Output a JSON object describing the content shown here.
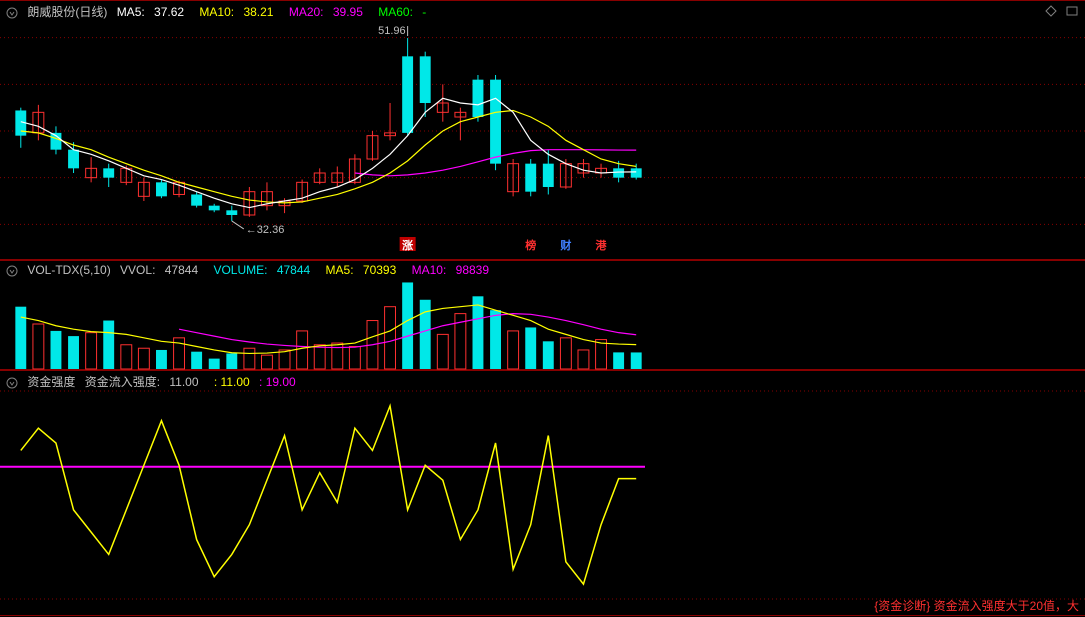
{
  "colors": {
    "bg": "#000000",
    "gridline": "#880000",
    "text_gray": "#c0c0c0",
    "up_candle": "#ff3030",
    "down_candle": "#00e8e8",
    "ma5": "#ffffff",
    "ma10": "#ffff00",
    "ma20": "#ff00ff",
    "ma60": "#00ff00",
    "vol_ma5": "#ffff00",
    "vol_ma10": "#ff00ff",
    "strength_line": "#ffff00",
    "strength_ref": "#ff00ff"
  },
  "panel1": {
    "title": "朗威股份(日线)",
    "ma5_label": "MA5:",
    "ma5_value": "37.62",
    "ma10_label": "MA10:",
    "ma10_value": "38.21",
    "ma20_label": "MA20:",
    "ma20_value": "39.95",
    "ma60_label": "MA60:",
    "ma60_value": "-",
    "high_annot": "51.96",
    "low_annot": "32.36",
    "ylim": [
      30,
      54
    ],
    "gridlines_y": [
      32,
      37,
      42,
      47,
      52
    ],
    "candles": [
      {
        "o": 41.5,
        "h": 44.5,
        "l": 40.2,
        "c": 44.2,
        "up": false
      },
      {
        "o": 44.0,
        "h": 44.8,
        "l": 41.0,
        "c": 41.8,
        "up": true
      },
      {
        "o": 41.8,
        "h": 42.5,
        "l": 39.5,
        "c": 40.0,
        "up": false
      },
      {
        "o": 40.0,
        "h": 40.8,
        "l": 37.5,
        "c": 38.0,
        "up": false
      },
      {
        "o": 38.0,
        "h": 39.2,
        "l": 36.5,
        "c": 37.0,
        "up": true
      },
      {
        "o": 37.0,
        "h": 38.5,
        "l": 36.0,
        "c": 38.0,
        "up": false
      },
      {
        "o": 38.0,
        "h": 38.3,
        "l": 36.2,
        "c": 36.5,
        "up": true
      },
      {
        "o": 36.5,
        "h": 37.0,
        "l": 34.5,
        "c": 35.0,
        "up": true
      },
      {
        "o": 35.0,
        "h": 36.8,
        "l": 34.8,
        "c": 36.5,
        "up": false
      },
      {
        "o": 36.5,
        "h": 36.7,
        "l": 34.9,
        "c": 35.2,
        "up": true
      },
      {
        "o": 35.2,
        "h": 35.5,
        "l": 33.8,
        "c": 34.0,
        "up": false
      },
      {
        "o": 34.0,
        "h": 34.2,
        "l": 33.3,
        "c": 33.5,
        "up": false
      },
      {
        "o": 33.5,
        "h": 34.0,
        "l": 32.36,
        "c": 33.0,
        "up": false
      },
      {
        "o": 33.0,
        "h": 36.0,
        "l": 32.8,
        "c": 35.5,
        "up": true
      },
      {
        "o": 35.5,
        "h": 36.5,
        "l": 33.5,
        "c": 34.0,
        "up": true
      },
      {
        "o": 34.0,
        "h": 34.8,
        "l": 33.2,
        "c": 34.5,
        "up": true
      },
      {
        "o": 34.5,
        "h": 36.8,
        "l": 34.3,
        "c": 36.5,
        "up": true
      },
      {
        "o": 36.5,
        "h": 38.0,
        "l": 36.3,
        "c": 37.5,
        "up": true
      },
      {
        "o": 37.5,
        "h": 38.2,
        "l": 36.0,
        "c": 36.5,
        "up": true
      },
      {
        "o": 36.5,
        "h": 39.5,
        "l": 36.3,
        "c": 39.0,
        "up": true
      },
      {
        "o": 39.0,
        "h": 42.0,
        "l": 38.8,
        "c": 41.5,
        "up": true
      },
      {
        "o": 41.5,
        "h": 45.0,
        "l": 41.0,
        "c": 41.8,
        "up": true
      },
      {
        "o": 41.8,
        "h": 51.96,
        "l": 41.5,
        "c": 50.0,
        "up": false
      },
      {
        "o": 50.0,
        "h": 50.5,
        "l": 43.5,
        "c": 45.0,
        "up": false
      },
      {
        "o": 45.0,
        "h": 47.0,
        "l": 43.0,
        "c": 44.0,
        "up": true
      },
      {
        "o": 44.0,
        "h": 44.5,
        "l": 41.0,
        "c": 43.5,
        "up": true
      },
      {
        "o": 43.5,
        "h": 48.0,
        "l": 43.0,
        "c": 47.5,
        "up": false
      },
      {
        "o": 47.5,
        "h": 48.0,
        "l": 37.8,
        "c": 38.5,
        "up": false
      },
      {
        "o": 38.5,
        "h": 39.0,
        "l": 35.0,
        "c": 35.5,
        "up": true
      },
      {
        "o": 35.5,
        "h": 39.0,
        "l": 35.0,
        "c": 38.5,
        "up": false
      },
      {
        "o": 38.5,
        "h": 40.0,
        "l": 35.2,
        "c": 36.0,
        "up": false
      },
      {
        "o": 36.0,
        "h": 39.0,
        "l": 35.8,
        "c": 38.5,
        "up": true
      },
      {
        "o": 38.5,
        "h": 39.0,
        "l": 37.0,
        "c": 37.5,
        "up": true
      },
      {
        "o": 37.5,
        "h": 38.5,
        "l": 37.0,
        "c": 38.0,
        "up": true
      },
      {
        "o": 38.0,
        "h": 38.8,
        "l": 36.5,
        "c": 37.0,
        "up": false
      },
      {
        "o": 37.0,
        "h": 38.5,
        "l": 36.8,
        "c": 38.0,
        "up": false
      }
    ],
    "ma5_line": [
      43.0,
      42.5,
      41.5,
      40.0,
      39.5,
      38.8,
      38.0,
      37.2,
      36.8,
      36.2,
      35.5,
      34.8,
      34.2,
      33.8,
      34.2,
      34.5,
      34.8,
      35.5,
      36.0,
      36.8,
      38.0,
      39.5,
      41.5,
      44.0,
      45.5,
      45.0,
      44.8,
      45.5,
      44.0,
      41.0,
      39.5,
      38.5,
      37.8,
      37.5,
      37.6,
      37.62
    ],
    "ma10_line": [
      42.0,
      41.8,
      41.2,
      40.5,
      40.0,
      39.2,
      38.5,
      37.8,
      37.2,
      36.5,
      36.0,
      35.5,
      35.0,
      34.6,
      34.4,
      34.3,
      34.4,
      34.8,
      35.2,
      35.8,
      36.5,
      37.5,
      38.8,
      40.5,
      42.0,
      43.0,
      43.5,
      44.0,
      44.2,
      43.5,
      42.5,
      41.0,
      40.0,
      39.0,
      38.5,
      38.21
    ],
    "ma20_line": [
      null,
      null,
      null,
      null,
      null,
      null,
      null,
      null,
      null,
      null,
      null,
      null,
      null,
      null,
      null,
      null,
      null,
      null,
      null,
      37.5,
      37.3,
      37.2,
      37.3,
      37.5,
      37.8,
      38.2,
      38.7,
      39.2,
      39.6,
      39.9,
      40.0,
      40.0,
      40.0,
      39.98,
      39.96,
      39.95
    ],
    "badges": [
      {
        "x": 22,
        "text": "涨",
        "color": "#ffffff",
        "bg": "#c00000"
      },
      {
        "x": 29,
        "text": "榜",
        "color": "#ff3030",
        "bg": ""
      },
      {
        "x": 31,
        "text": "财",
        "color": "#4080ff",
        "bg": ""
      },
      {
        "x": 33,
        "text": "港",
        "color": "#ff3030",
        "bg": ""
      }
    ]
  },
  "panel2": {
    "label1": "VOL-TDX(5,10)",
    "label2_pre": "VVOL:",
    "label2_val": "47844",
    "label3_pre": "VOLUME:",
    "label3_val": "47844",
    "label4_pre": "MA5:",
    "label4_val": "70393",
    "label5_pre": "MA10:",
    "label5_val": "98839",
    "ylim": [
      0,
      260000
    ],
    "bars": [
      {
        "v": 180000,
        "up": false
      },
      {
        "v": 130000,
        "up": true
      },
      {
        "v": 110000,
        "up": false
      },
      {
        "v": 95000,
        "up": false
      },
      {
        "v": 105000,
        "up": true
      },
      {
        "v": 140000,
        "up": false
      },
      {
        "v": 70000,
        "up": true
      },
      {
        "v": 60000,
        "up": true
      },
      {
        "v": 55000,
        "up": false
      },
      {
        "v": 90000,
        "up": true
      },
      {
        "v": 50000,
        "up": false
      },
      {
        "v": 30000,
        "up": false
      },
      {
        "v": 45000,
        "up": false
      },
      {
        "v": 60000,
        "up": true
      },
      {
        "v": 40000,
        "up": true
      },
      {
        "v": 55000,
        "up": true
      },
      {
        "v": 110000,
        "up": true
      },
      {
        "v": 70000,
        "up": true
      },
      {
        "v": 75000,
        "up": true
      },
      {
        "v": 65000,
        "up": true
      },
      {
        "v": 140000,
        "up": true
      },
      {
        "v": 180000,
        "up": true
      },
      {
        "v": 250000,
        "up": false
      },
      {
        "v": 200000,
        "up": false
      },
      {
        "v": 100000,
        "up": true
      },
      {
        "v": 160000,
        "up": true
      },
      {
        "v": 210000,
        "up": false
      },
      {
        "v": 170000,
        "up": false
      },
      {
        "v": 110000,
        "up": true
      },
      {
        "v": 120000,
        "up": false
      },
      {
        "v": 80000,
        "up": false
      },
      {
        "v": 90000,
        "up": true
      },
      {
        "v": 55000,
        "up": true
      },
      {
        "v": 85000,
        "up": true
      },
      {
        "v": 48000,
        "up": false
      },
      {
        "v": 47844,
        "up": false
      }
    ],
    "ma5_line": [
      150000,
      140000,
      125000,
      115000,
      108000,
      105000,
      100000,
      90000,
      80000,
      75000,
      65000,
      55000,
      47000,
      45000,
      46000,
      50000,
      60000,
      67000,
      70000,
      75000,
      93000,
      110000,
      140000,
      165000,
      175000,
      180000,
      185000,
      170000,
      155000,
      140000,
      115000,
      100000,
      85000,
      75000,
      72000,
      70393
    ],
    "ma10_line": [
      null,
      null,
      null,
      null,
      null,
      null,
      null,
      null,
      null,
      115000,
      105000,
      95000,
      85000,
      78000,
      72000,
      68000,
      65000,
      63000,
      62000,
      63000,
      70000,
      80000,
      95000,
      110000,
      125000,
      135000,
      145000,
      155000,
      160000,
      158000,
      150000,
      140000,
      128000,
      115000,
      105000,
      98839
    ]
  },
  "panel3": {
    "label1": "资金强度",
    "label2": "资金流入强度:",
    "val1": "11.00",
    "val2": "11.00",
    "val3": "19.00",
    "ylim": [
      -70,
      70
    ],
    "ref_level": 19,
    "line": [
      30,
      45,
      35,
      -10,
      -25,
      -40,
      -10,
      20,
      50,
      20,
      -30,
      -55,
      -40,
      -20,
      10,
      40,
      -10,
      15,
      -5,
      45,
      30,
      60,
      -10,
      20,
      10,
      -30,
      -10,
      35,
      -50,
      -20,
      40,
      -45,
      -60,
      -20,
      11,
      11
    ]
  },
  "footer": "{资金诊断} 资金流入强度大于20值，大"
}
